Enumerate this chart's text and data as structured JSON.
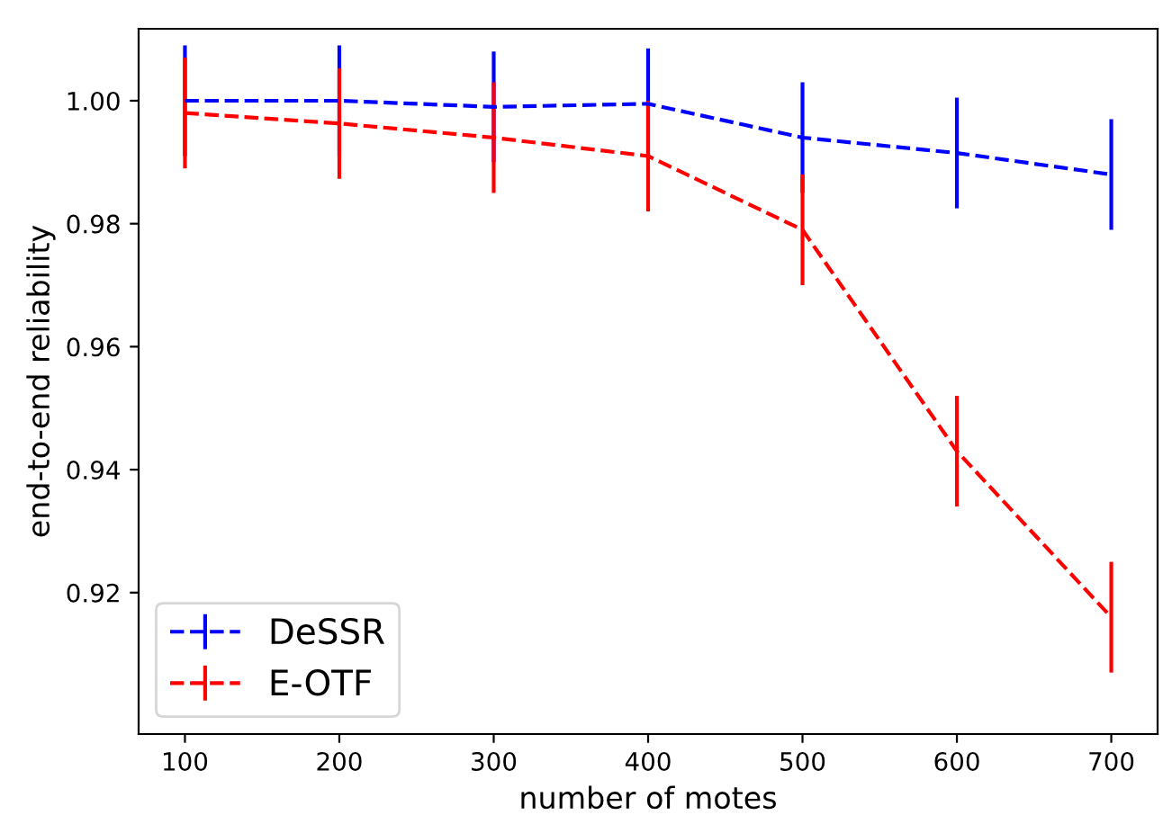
{
  "chart_data": {
    "type": "line",
    "xlabel": "number of motes",
    "ylabel": "end-to-end reliability",
    "x": [
      100,
      200,
      300,
      400,
      500,
      600,
      700
    ],
    "series": [
      {
        "name": "DeSSR",
        "color": "#0000ff",
        "values": [
          1.0,
          1.0,
          0.999,
          0.9995,
          0.994,
          0.9915,
          0.988
        ],
        "errors": [
          0.009,
          0.009,
          0.009,
          0.009,
          0.009,
          0.009,
          0.009
        ]
      },
      {
        "name": "E-OTF",
        "color": "#ff0000",
        "values": [
          0.998,
          0.9963,
          0.994,
          0.991,
          0.979,
          0.943,
          0.916
        ],
        "errors": [
          0.009,
          0.009,
          0.009,
          0.009,
          0.009,
          0.009,
          0.009
        ]
      }
    ],
    "xlim": [
      70,
      730
    ],
    "ylim": [
      0.897,
      1.0117
    ],
    "xticks": [
      100,
      200,
      300,
      400,
      500,
      600,
      700
    ],
    "yticks": [
      {
        "value": 0.92,
        "label": "0.92"
      },
      {
        "value": 0.94,
        "label": "0.94"
      },
      {
        "value": 0.96,
        "label": "0.96"
      },
      {
        "value": 0.98,
        "label": "0.98"
      },
      {
        "value": 1.0,
        "label": "1.00"
      }
    ],
    "line_style": "dashed",
    "marker": "none",
    "legend": "bottom left",
    "grid": false
  }
}
